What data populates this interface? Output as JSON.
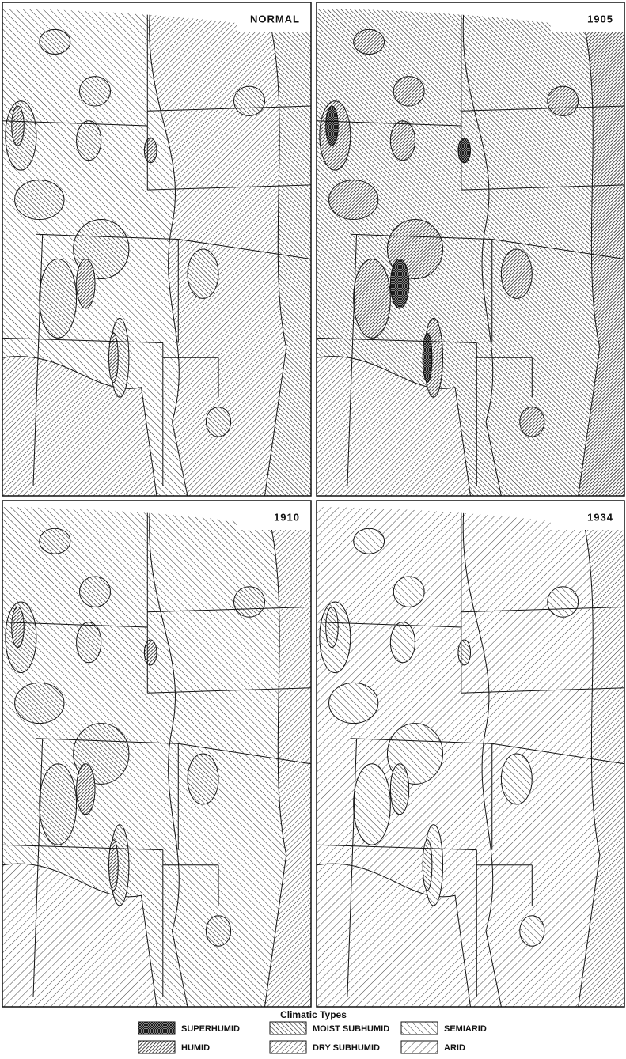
{
  "panels": [
    {
      "label": "NORMAL"
    },
    {
      "label": "1905"
    },
    {
      "label": "1910"
    },
    {
      "label": "1934"
    }
  ],
  "legend": {
    "title": "Climatic Types",
    "items": [
      {
        "label": "SUPERHUMID"
      },
      {
        "label": "MOIST SUBHUMID"
      },
      {
        "label": "SEMIARID"
      },
      {
        "label": "HUMID"
      },
      {
        "label": "DRY SUBHUMID"
      },
      {
        "label": "ARID"
      }
    ]
  }
}
